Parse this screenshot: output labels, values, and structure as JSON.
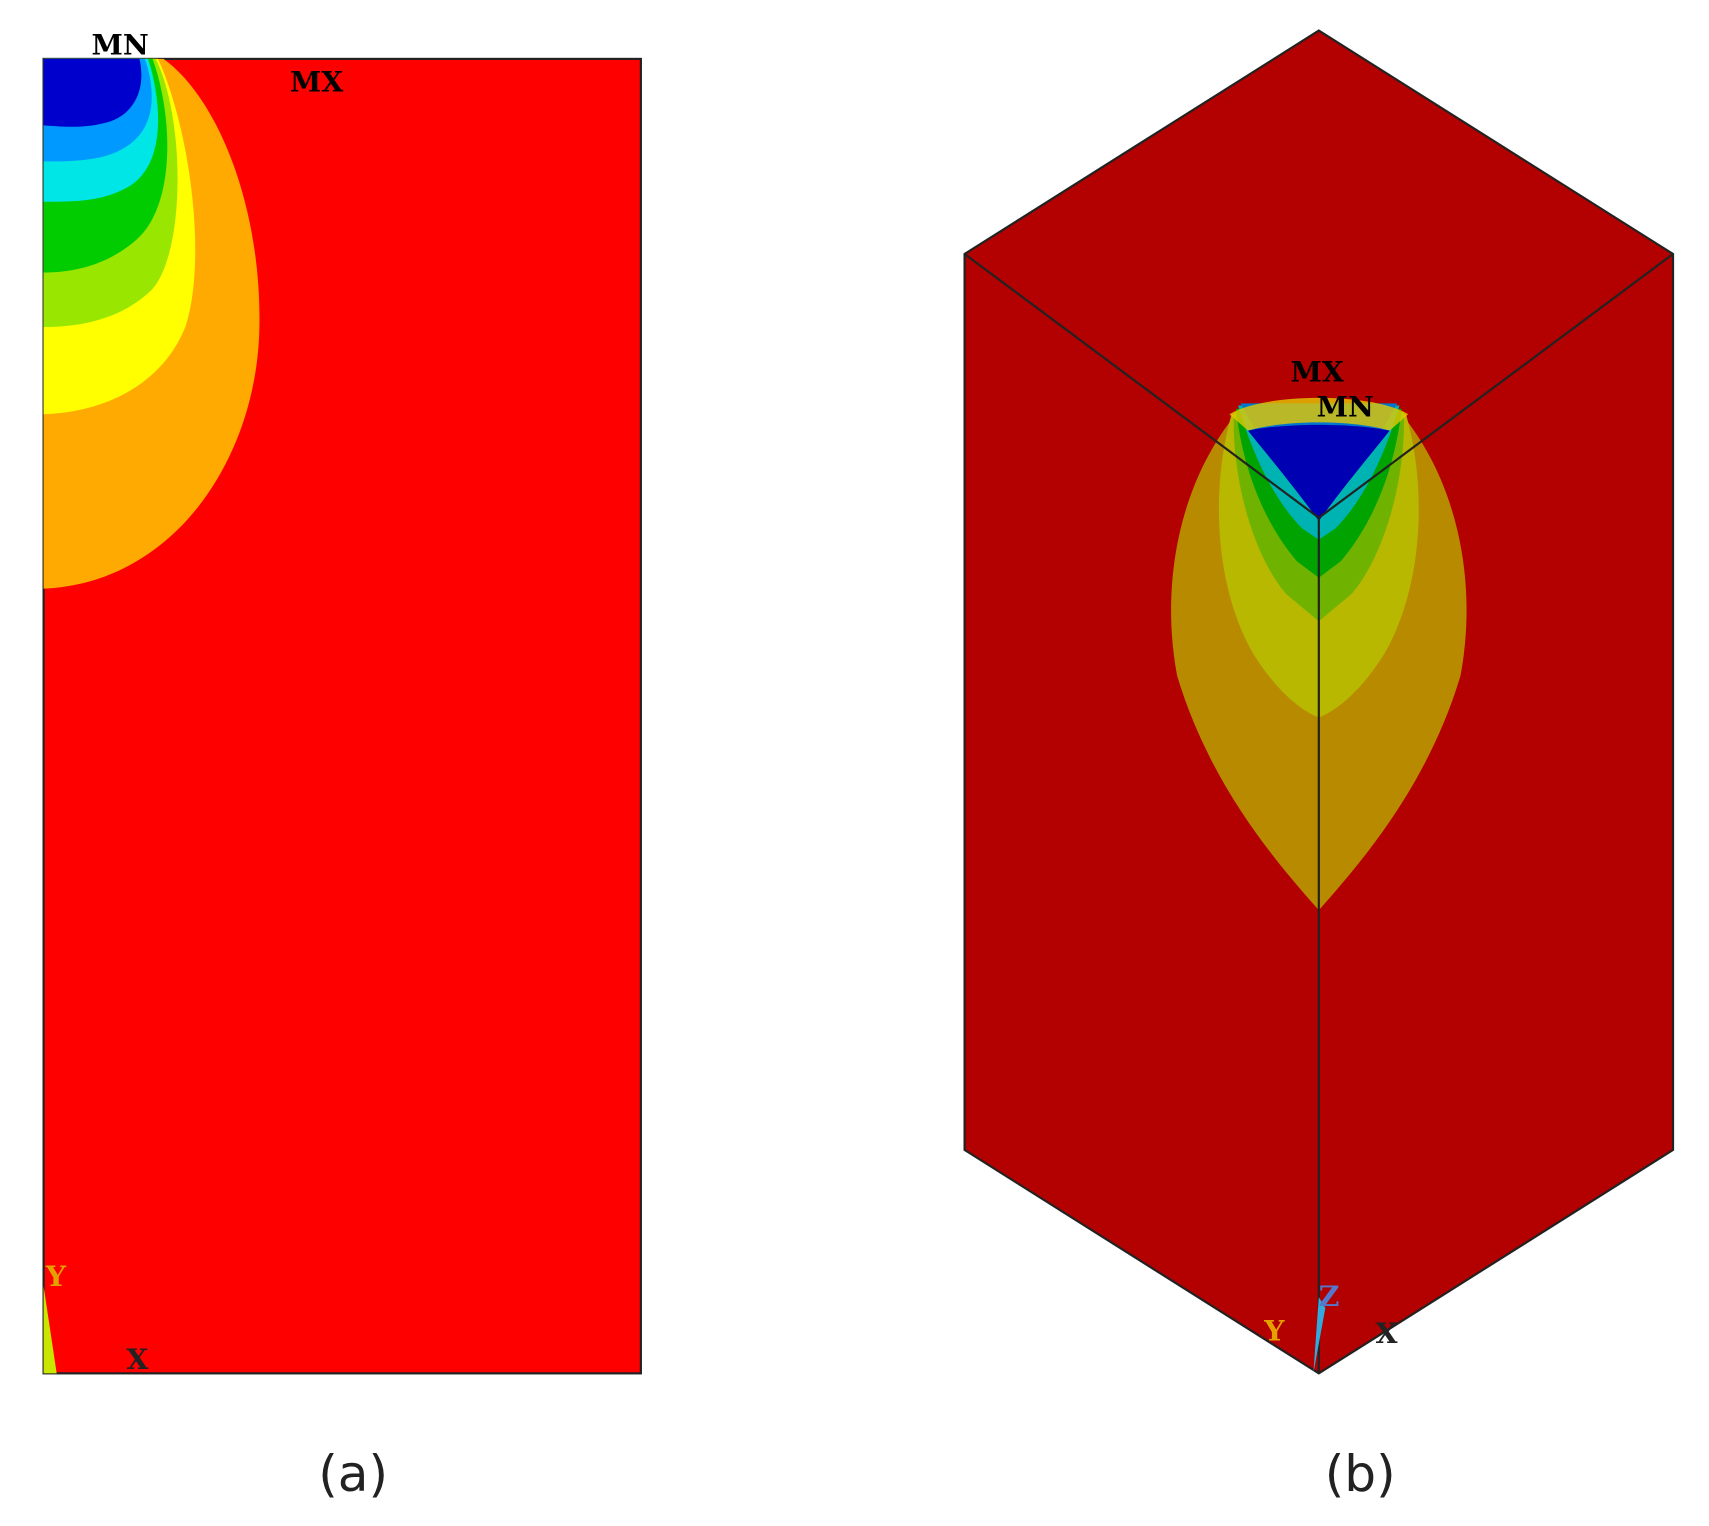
{
  "panels": [
    {
      "caption": "(a)",
      "min_label": "MN",
      "max_label": "MX",
      "axis_labels": [
        "Y",
        "X"
      ]
    },
    {
      "caption": "(b)",
      "min_label": "MN",
      "max_label": "MX",
      "axis_labels": [
        "Y",
        "Z",
        "X"
      ]
    }
  ]
}
